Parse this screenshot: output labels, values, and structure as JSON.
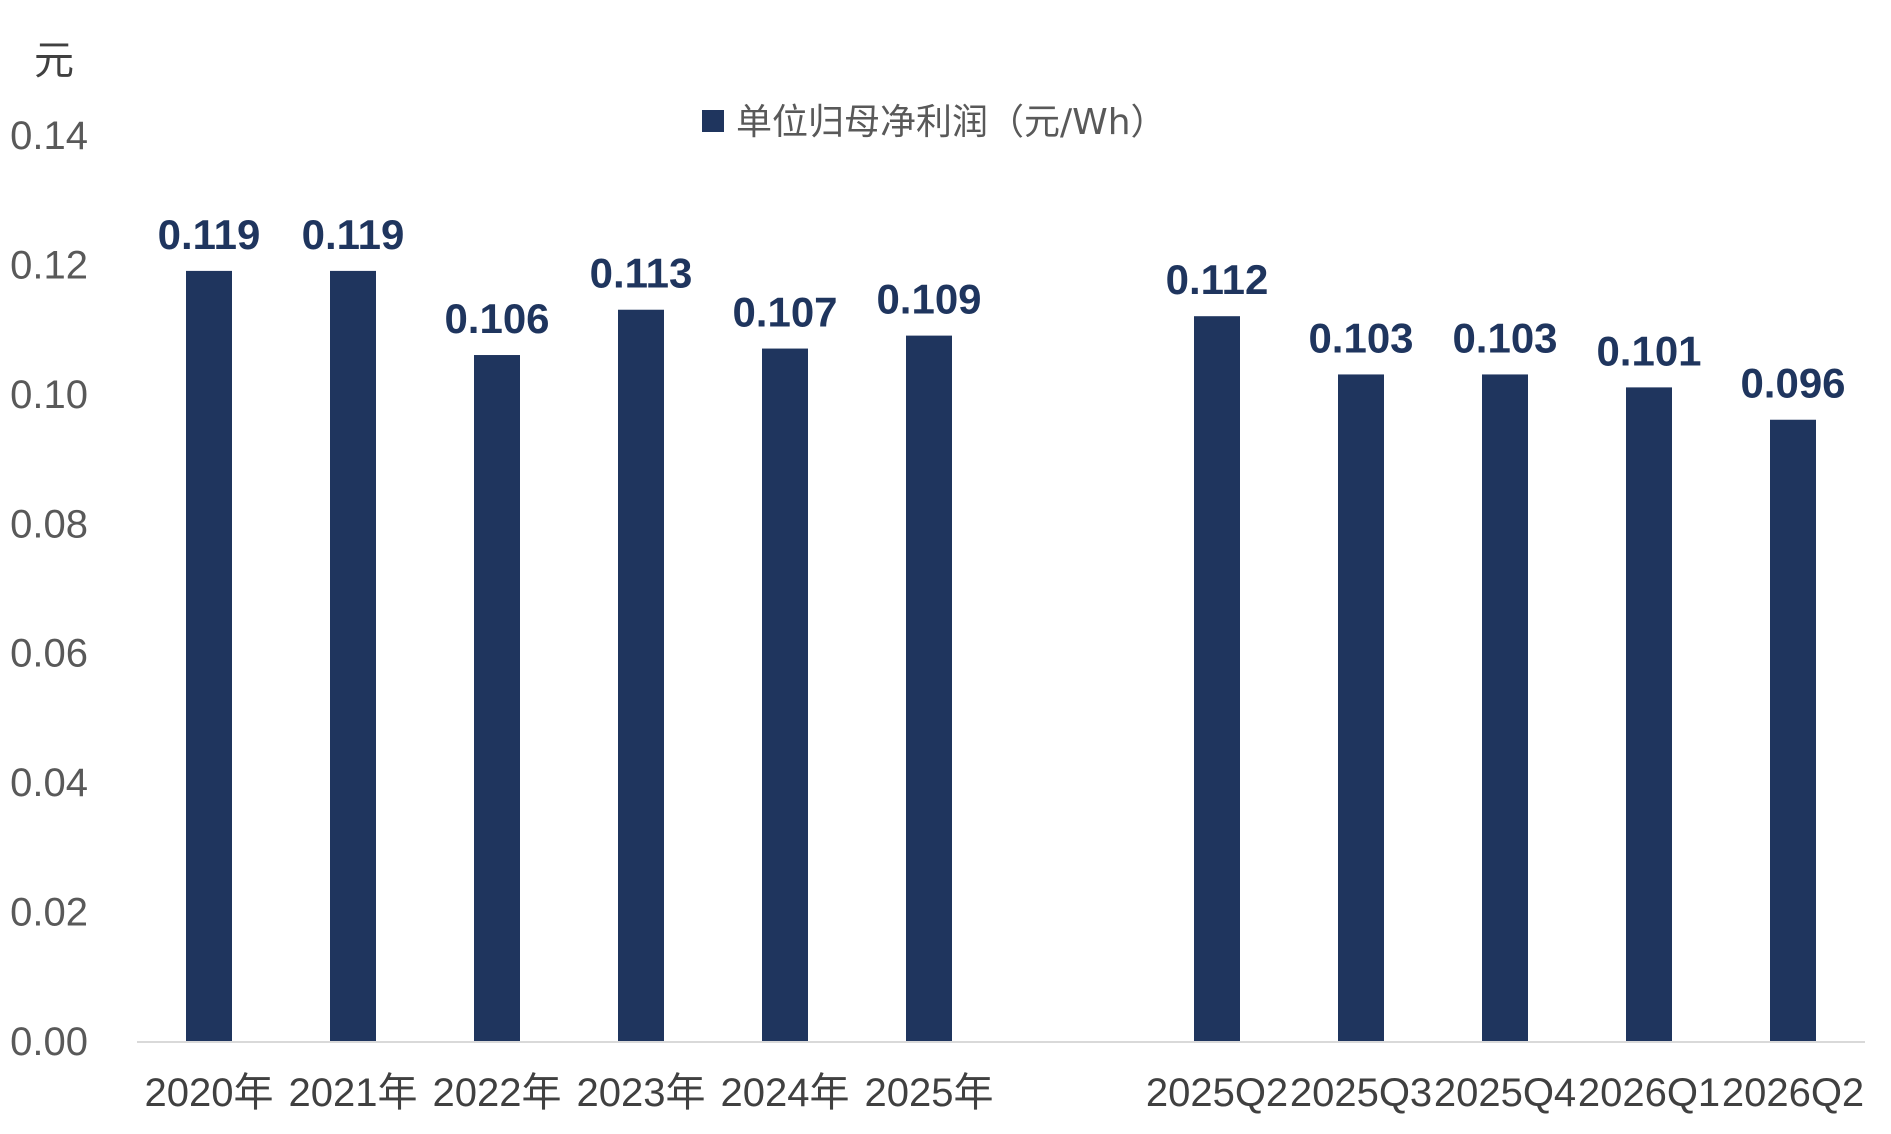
{
  "chart_data": {
    "type": "bar",
    "categories": [
      "2020年",
      "2021年",
      "2022年",
      "2023年",
      "2024年",
      "2025年",
      "",
      "2025Q2",
      "2025Q3",
      "2025Q4",
      "2026Q1",
      "2026Q2"
    ],
    "series": [
      {
        "name": "单位归母净利润（元/Wh）",
        "values": [
          0.119,
          0.119,
          0.106,
          0.113,
          0.107,
          0.109,
          null,
          0.112,
          0.103,
          0.103,
          0.101,
          0.096
        ],
        "labels": [
          "0.119",
          "0.119",
          "0.106",
          "0.113",
          "0.107",
          "0.109",
          "",
          "0.112",
          "0.103",
          "0.103",
          "0.101",
          "0.096"
        ]
      }
    ],
    "ylabel": "元",
    "ylim": [
      0,
      0.14
    ],
    "yticks": [
      "0.00",
      "0.02",
      "0.04",
      "0.06",
      "0.08",
      "0.10",
      "0.12",
      "0.14"
    ],
    "grid": false,
    "legend_position": "top-center",
    "colors": {
      "bar": "#1f355e",
      "axis": "#d9d9d9"
    }
  }
}
